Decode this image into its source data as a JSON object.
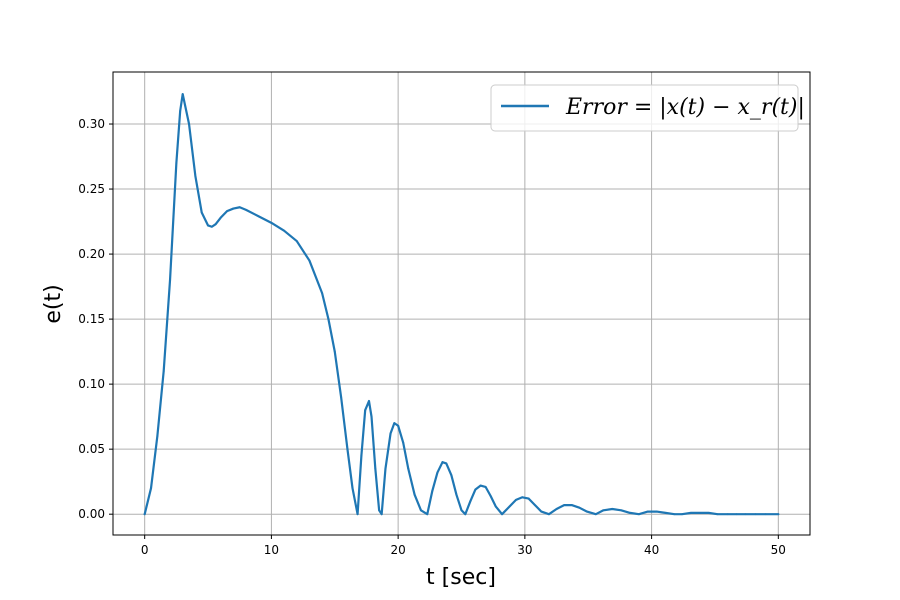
{
  "chart_data": {
    "type": "line",
    "xlabel": "t [sec]",
    "ylabel": "e(t)",
    "xlim": [
      -2.5,
      52.5
    ],
    "ylim": [
      -0.016,
      0.34
    ],
    "xticks": [
      0,
      10,
      20,
      30,
      40,
      50
    ],
    "yticks": [
      0.0,
      0.05,
      0.1,
      0.15,
      0.2,
      0.25,
      0.3
    ],
    "xtick_labels": [
      "0",
      "10",
      "20",
      "30",
      "40",
      "50"
    ],
    "ytick_labels": [
      "0.00",
      "0.05",
      "0.10",
      "0.15",
      "0.20",
      "0.25",
      "0.30"
    ],
    "grid": true,
    "legend": {
      "placement": "upper right",
      "entries": [
        {
          "text": "Error = |x(t) − x_r(t)|"
        }
      ]
    },
    "series": [
      {
        "color": "#1f77b4",
        "x": [
          0,
          0.5,
          1.0,
          1.5,
          2.0,
          2.5,
          2.8,
          3.0,
          3.5,
          4.0,
          4.5,
          5.0,
          5.3,
          5.6,
          6.0,
          6.5,
          7.0,
          7.5,
          8.0,
          9.0,
          10.0,
          11.0,
          12.0,
          13.0,
          14.0,
          14.5,
          15.0,
          15.5,
          16.0,
          16.4,
          16.8,
          17.1,
          17.4,
          17.7,
          17.9,
          18.2,
          18.5,
          18.7,
          19.0,
          19.4,
          19.7,
          20.0,
          20.4,
          20.8,
          21.3,
          21.8,
          22.3,
          22.7,
          23.1,
          23.5,
          23.8,
          24.2,
          24.6,
          25.0,
          25.3,
          25.7,
          26.1,
          26.5,
          26.9,
          27.3,
          27.7,
          28.2,
          28.8,
          29.3,
          29.8,
          30.3,
          30.8,
          31.3,
          31.9,
          32.5,
          33.1,
          33.7,
          34.3,
          34.9,
          35.6,
          36.2,
          36.9,
          37.6,
          38.3,
          39.0,
          39.7,
          40.4,
          41.1,
          41.8,
          42.4,
          43.1,
          43.8,
          44.5,
          45.2,
          46.0,
          46.7,
          47.4,
          48.2,
          49.0,
          50.0
        ],
        "y": [
          0.0,
          0.02,
          0.06,
          0.11,
          0.18,
          0.27,
          0.31,
          0.323,
          0.3,
          0.26,
          0.232,
          0.222,
          0.221,
          0.223,
          0.228,
          0.233,
          0.235,
          0.236,
          0.234,
          0.229,
          0.224,
          0.218,
          0.21,
          0.195,
          0.17,
          0.15,
          0.125,
          0.09,
          0.05,
          0.02,
          0.0,
          0.045,
          0.08,
          0.087,
          0.075,
          0.035,
          0.003,
          0.0,
          0.035,
          0.062,
          0.07,
          0.068,
          0.055,
          0.035,
          0.015,
          0.003,
          0.0,
          0.018,
          0.032,
          0.04,
          0.039,
          0.03,
          0.015,
          0.003,
          0.0,
          0.01,
          0.019,
          0.022,
          0.021,
          0.014,
          0.006,
          0.0,
          0.006,
          0.011,
          0.013,
          0.012,
          0.007,
          0.002,
          0.0,
          0.004,
          0.007,
          0.007,
          0.005,
          0.002,
          0.0,
          0.003,
          0.004,
          0.003,
          0.001,
          0.0,
          0.002,
          0.002,
          0.001,
          0.0,
          0.0,
          0.001,
          0.001,
          0.001,
          0.0,
          0.0,
          0.0,
          0.0,
          0.0,
          0.0,
          0.0
        ]
      }
    ]
  }
}
